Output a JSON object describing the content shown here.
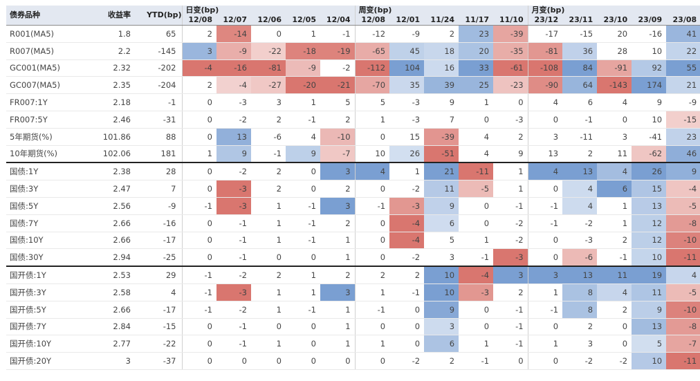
{
  "header": {
    "name": "债券品种",
    "yield": "收益率",
    "ytd": "YTD(bp)",
    "groups": [
      {
        "label": "日变(bp)",
        "dates": [
          "12/08",
          "12/07",
          "12/06",
          "12/05",
          "12/04"
        ]
      },
      {
        "label": "周变(bp)",
        "dates": [
          "12/08",
          "12/01",
          "11/24",
          "11/17",
          "11/10"
        ]
      },
      {
        "label": "月变(bp)",
        "dates": [
          "23/12",
          "23/11",
          "23/10",
          "23/09",
          "23/08"
        ]
      }
    ]
  },
  "colors": {
    "pos_scale": "#d9766f",
    "neg_scale": "#7a9fd2"
  },
  "chart_data": {
    "type": "table",
    "columns": [
      "债券品种",
      "收益率",
      "YTD(bp)",
      "日变 12/08",
      "日变 12/07",
      "日变 12/06",
      "日变 12/05",
      "日变 12/04",
      "周变 12/08",
      "周变 12/01",
      "周变 11/24",
      "周变 11/17",
      "周变 11/10",
      "月变 23/12",
      "月变 23/11",
      "月变 23/10",
      "月变 23/09",
      "月变 23/08"
    ],
    "groups": [
      {
        "rows": [
          {
            "name": "R001(MA5)",
            "yield": "1.8",
            "ytd": "65",
            "daily": [
              2,
              -14,
              0,
              1,
              -1
            ],
            "weekly": [
              -12,
              -9,
              2,
              23,
              -39
            ],
            "monthly": [
              -17,
              -15,
              20,
              -16,
              41
            ]
          },
          {
            "name": "R007(MA5)",
            "yield": "2.2",
            "ytd": "-145",
            "daily": [
              3,
              -9,
              -22,
              -18,
              -19
            ],
            "weekly": [
              -65,
              45,
              18,
              20,
              -35
            ],
            "monthly": [
              -81,
              36,
              28,
              10,
              22
            ]
          },
          {
            "name": "GC001(MA5)",
            "yield": "2.32",
            "ytd": "-202",
            "daily": [
              -4,
              -16,
              -81,
              -9,
              -2
            ],
            "weekly": [
              -112,
              104,
              16,
              33,
              -61
            ],
            "monthly": [
              -108,
              84,
              -91,
              92,
              55
            ]
          },
          {
            "name": "GC007(MA5)",
            "yield": "2.35",
            "ytd": "-204",
            "daily": [
              2,
              -4,
              -27,
              -20,
              -21
            ],
            "weekly": [
              -70,
              35,
              39,
              25,
              -23
            ],
            "monthly": [
              -90,
              64,
              -143,
              174,
              21
            ]
          },
          {
            "name": "FR007:1Y",
            "yield": "2.18",
            "ytd": "-1",
            "daily": [
              0,
              -3,
              3,
              1,
              5
            ],
            "weekly": [
              5,
              -3,
              9,
              1,
              0
            ],
            "monthly": [
              4,
              6,
              4,
              9,
              -9
            ]
          },
          {
            "name": "FR007:5Y",
            "yield": "2.46",
            "ytd": "-31",
            "daily": [
              0,
              -2,
              2,
              -1,
              2
            ],
            "weekly": [
              1,
              -3,
              7,
              0,
              -3
            ],
            "monthly": [
              0,
              -1,
              0,
              10,
              -15
            ]
          },
          {
            "name": "5年期货(%)",
            "yield": "101.86",
            "ytd": "88",
            "daily": [
              0,
              13,
              -6,
              4,
              -10
            ],
            "weekly": [
              0,
              15,
              -39,
              4,
              2
            ],
            "monthly": [
              3,
              -11,
              3,
              -41,
              23
            ]
          },
          {
            "name": "10年期货(%)",
            "yield": "102.06",
            "ytd": "181",
            "daily": [
              1,
              9,
              -1,
              9,
              -7
            ],
            "weekly": [
              10,
              26,
              -51,
              4,
              9
            ],
            "monthly": [
              13,
              2,
              11,
              -62,
              46
            ]
          }
        ]
      },
      {
        "rows": [
          {
            "name": "国债:1Y",
            "yield": "2.38",
            "ytd": "28",
            "daily": [
              0,
              -2,
              2,
              0,
              3
            ],
            "weekly": [
              4,
              1,
              21,
              -11,
              1
            ],
            "monthly": [
              4,
              13,
              4,
              26,
              9
            ]
          },
          {
            "name": "国债:3Y",
            "yield": "2.47",
            "ytd": "7",
            "daily": [
              0,
              -3,
              2,
              0,
              2
            ],
            "weekly": [
              0,
              -2,
              11,
              -5,
              1
            ],
            "monthly": [
              0,
              4,
              6,
              15,
              -4
            ]
          },
          {
            "name": "国债:5Y",
            "yield": "2.56",
            "ytd": "-9",
            "daily": [
              -1,
              -3,
              1,
              -1,
              3
            ],
            "weekly": [
              -1,
              -3,
              9,
              0,
              -1
            ],
            "monthly": [
              -1,
              4,
              1,
              13,
              -5
            ]
          },
          {
            "name": "国债:7Y",
            "yield": "2.66",
            "ytd": "-16",
            "daily": [
              0,
              -1,
              1,
              -1,
              2
            ],
            "weekly": [
              0,
              -4,
              6,
              0,
              -2
            ],
            "monthly": [
              -1,
              -2,
              1,
              12,
              -8
            ]
          },
          {
            "name": "国债:10Y",
            "yield": "2.66",
            "ytd": "-17",
            "daily": [
              0,
              -1,
              1,
              -1,
              1
            ],
            "weekly": [
              0,
              -4,
              5,
              1,
              -2
            ],
            "monthly": [
              0,
              -3,
              2,
              12,
              -10
            ]
          },
          {
            "name": "国债:30Y",
            "yield": "2.94",
            "ytd": "-25",
            "daily": [
              0,
              -1,
              0,
              0,
              1
            ],
            "weekly": [
              0,
              -2,
              3,
              -1,
              -3
            ],
            "monthly": [
              0,
              -6,
              -1,
              10,
              -11
            ]
          }
        ]
      },
      {
        "rows": [
          {
            "name": "国开债:1Y",
            "yield": "2.53",
            "ytd": "29",
            "daily": [
              -1,
              -2,
              2,
              1,
              2
            ],
            "weekly": [
              2,
              2,
              10,
              -4,
              3
            ],
            "monthly": [
              3,
              13,
              11,
              19,
              4
            ]
          },
          {
            "name": "国开债:3Y",
            "yield": "2.58",
            "ytd": "4",
            "daily": [
              -1,
              -3,
              1,
              1,
              3
            ],
            "weekly": [
              1,
              -1,
              10,
              -3,
              2
            ],
            "monthly": [
              1,
              8,
              4,
              11,
              -5
            ]
          },
          {
            "name": "国开债:5Y",
            "yield": "2.66",
            "ytd": "-17",
            "daily": [
              -1,
              -2,
              1,
              -1,
              1
            ],
            "weekly": [
              -1,
              0,
              9,
              0,
              -1
            ],
            "monthly": [
              -1,
              8,
              2,
              9,
              -10
            ]
          },
          {
            "name": "国开债:7Y",
            "yield": "2.84",
            "ytd": "-15",
            "daily": [
              0,
              -1,
              0,
              0,
              1
            ],
            "weekly": [
              0,
              0,
              3,
              0,
              -1
            ],
            "monthly": [
              0,
              2,
              0,
              13,
              -8
            ]
          },
          {
            "name": "国开债:10Y",
            "yield": "2.77",
            "ytd": "-22",
            "daily": [
              0,
              -1,
              1,
              0,
              1
            ],
            "weekly": [
              1,
              0,
              6,
              1,
              -1
            ],
            "monthly": [
              1,
              3,
              0,
              5,
              -7
            ]
          },
          {
            "name": "国开债:20Y",
            "yield": "3",
            "ytd": "-37",
            "daily": [
              0,
              0,
              0,
              0,
              0
            ],
            "weekly": [
              0,
              -2,
              2,
              -1,
              0
            ],
            "monthly": [
              0,
              -2,
              -2,
              10,
              -11
            ]
          }
        ]
      }
    ]
  }
}
